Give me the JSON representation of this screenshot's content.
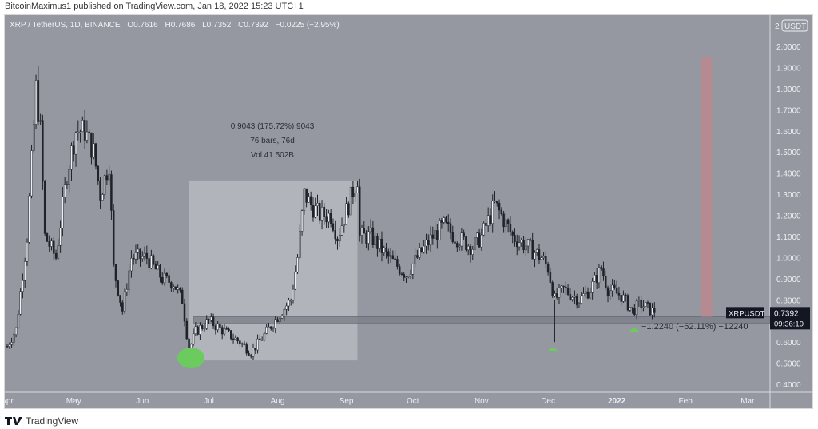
{
  "publisher_line": "BitcoinMaximus1 published on TradingView.com, Jan 18, 2022 15:23 UTC+1",
  "legend": {
    "symbol": "XRP / TetherUS, 1D, BINANCE",
    "open": "O0.7616",
    "high": "H0.7686",
    "low": "L0.7352",
    "close": "C0.7392",
    "change": "−0.0225 (−2.95%)"
  },
  "currency_badge": "USDT",
  "currency_prefix": "2",
  "footer_brand": "TradingView",
  "colors": {
    "background": "#9598a1",
    "candle": "#1e2229",
    "measure_box": "#b7b9c0",
    "support_zone": "#7d808a",
    "target_zone": "#b58a90",
    "highlight": "#6ccb5f"
  },
  "annotations": {
    "measure": {
      "line1": "0.9043 (175.72%) 9043",
      "line2": "76 bars, 76d",
      "line3": "Vol 41.502B"
    },
    "drawdown": "−1.2240 (−62.11%) −12240"
  },
  "price_label": {
    "symbol": "XRPUSDT",
    "price": "0.7392",
    "countdown": "09:36:19"
  },
  "chart_data": {
    "type": "candlestick",
    "xlabel": "",
    "ylabel": "",
    "ylim": [
      0.35,
      2.05
    ],
    "yticks": [
      "2.0000",
      "1.9000",
      "1.8000",
      "1.7000",
      "1.6000",
      "1.5000",
      "1.4000",
      "1.3000",
      "1.2000",
      "1.1000",
      "1.0000",
      "0.9000",
      "0.8000",
      "0.7000",
      "0.6000",
      "0.5000",
      "0.4000"
    ],
    "xticks": [
      {
        "label": "Apr",
        "date": "2021-04-01"
      },
      {
        "label": "May",
        "date": "2021-05-01"
      },
      {
        "label": "Jun",
        "date": "2021-06-01"
      },
      {
        "label": "Jul",
        "date": "2021-07-01"
      },
      {
        "label": "Aug",
        "date": "2021-08-01"
      },
      {
        "label": "Sep",
        "date": "2021-09-01"
      },
      {
        "label": "Oct",
        "date": "2021-10-01"
      },
      {
        "label": "Nov",
        "date": "2021-11-01"
      },
      {
        "label": "Dec",
        "date": "2021-12-01"
      },
      {
        "label": "2022",
        "date": "2022-01-01"
      },
      {
        "label": "Feb",
        "date": "2022-02-01"
      },
      {
        "label": "Mar",
        "date": "2022-03-01"
      }
    ],
    "approx_closes": [
      [
        "2021-04-01",
        0.58
      ],
      [
        "2021-04-05",
        0.66
      ],
      [
        "2021-04-10",
        1.1
      ],
      [
        "2021-04-14",
        1.8
      ],
      [
        "2021-04-16",
        1.6
      ],
      [
        "2021-04-18",
        1.1
      ],
      [
        "2021-04-23",
        1.0
      ],
      [
        "2021-04-28",
        1.4
      ],
      [
        "2021-05-02",
        1.6
      ],
      [
        "2021-05-06",
        1.6
      ],
      [
        "2021-05-10",
        1.5
      ],
      [
        "2021-05-13",
        1.3
      ],
      [
        "2021-05-17",
        1.45
      ],
      [
        "2021-05-19",
        0.95
      ],
      [
        "2021-05-23",
        0.75
      ],
      [
        "2021-05-27",
        1.0
      ],
      [
        "2021-06-03",
        1.0
      ],
      [
        "2021-06-10",
        0.9
      ],
      [
        "2021-06-15",
        0.88
      ],
      [
        "2021-06-19",
        0.8
      ],
      [
        "2021-06-22",
        0.56
      ],
      [
        "2021-06-25",
        0.65
      ],
      [
        "2021-07-01",
        0.7
      ],
      [
        "2021-07-08",
        0.65
      ],
      [
        "2021-07-15",
        0.6
      ],
      [
        "2021-07-20",
        0.55
      ],
      [
        "2021-07-25",
        0.62
      ],
      [
        "2021-08-01",
        0.72
      ],
      [
        "2021-08-07",
        0.8
      ],
      [
        "2021-08-10",
        1.0
      ],
      [
        "2021-08-13",
        1.3
      ],
      [
        "2021-08-16",
        1.25
      ],
      [
        "2021-08-20",
        1.2
      ],
      [
        "2021-08-25",
        1.2
      ],
      [
        "2021-08-28",
        1.1
      ],
      [
        "2021-09-02",
        1.25
      ],
      [
        "2021-09-06",
        1.38
      ],
      [
        "2021-09-07",
        1.1
      ],
      [
        "2021-09-12",
        1.1
      ],
      [
        "2021-09-20",
        1.0
      ],
      [
        "2021-09-28",
        0.92
      ],
      [
        "2021-10-03",
        1.0
      ],
      [
        "2021-10-10",
        1.1
      ],
      [
        "2021-10-15",
        1.15
      ],
      [
        "2021-10-20",
        1.1
      ],
      [
        "2021-10-28",
        1.05
      ],
      [
        "2021-11-01",
        1.1
      ],
      [
        "2021-11-07",
        1.25
      ],
      [
        "2021-11-10",
        1.2
      ],
      [
        "2021-11-15",
        1.1
      ],
      [
        "2021-11-22",
        1.05
      ],
      [
        "2021-11-28",
        1.0
      ],
      [
        "2021-12-01",
        0.95
      ],
      [
        "2021-12-04",
        0.8
      ],
      [
        "2021-12-08",
        0.85
      ],
      [
        "2021-12-15",
        0.8
      ],
      [
        "2021-12-20",
        0.85
      ],
      [
        "2021-12-25",
        0.95
      ],
      [
        "2021-12-28",
        0.85
      ],
      [
        "2022-01-03",
        0.82
      ],
      [
        "2022-01-08",
        0.75
      ],
      [
        "2022-01-12",
        0.78
      ],
      [
        "2022-01-18",
        0.7392
      ]
    ],
    "measure_range": {
      "from_date": "2021-06-22",
      "to_date": "2021-09-06",
      "low": 0.513,
      "high": 1.365
    },
    "support_zone": [
      0.69,
      0.72
    ],
    "target_zone": {
      "date": "2022-02-08",
      "low": 0.72,
      "high": 1.95
    }
  }
}
